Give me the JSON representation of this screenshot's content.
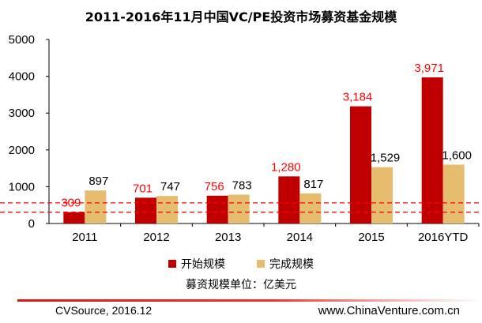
{
  "chart_data": {
    "type": "bar",
    "title": "2011-2016年11月中国VC/PE投资市场募资基金规模",
    "categories": [
      "2011",
      "2012",
      "2013",
      "2014",
      "2015",
      "2016YTD"
    ],
    "series": [
      {
        "name": "开始规模",
        "values": [
          309,
          701,
          756,
          1280,
          3184,
          3971
        ],
        "labels": [
          "309",
          "701",
          "756",
          "1,280",
          "3,184",
          "3,971"
        ],
        "color": "#c00000",
        "label_color": "#ff0000"
      },
      {
        "name": "完成规模",
        "values": [
          897,
          747,
          783,
          817,
          1529,
          1600
        ],
        "labels": [
          "897",
          "747",
          "783",
          "817",
          "1,529",
          "1,600"
        ],
        "color": "#e6bd6e",
        "label_color": "#000000"
      }
    ],
    "yticks": [
      "0",
      "1000",
      "2000",
      "3000",
      "4000",
      "5000"
    ],
    "ylim": [
      0,
      5000
    ],
    "reference_lines": [
      309,
      560
    ],
    "reference_line_color": "#ff0000",
    "grid": false,
    "legend_position": "bottom"
  },
  "unit_note": "募资规模单位：亿美元",
  "footer": {
    "source": "CVSource, 2016.12",
    "site": "www.ChinaVenture.com.cn"
  }
}
